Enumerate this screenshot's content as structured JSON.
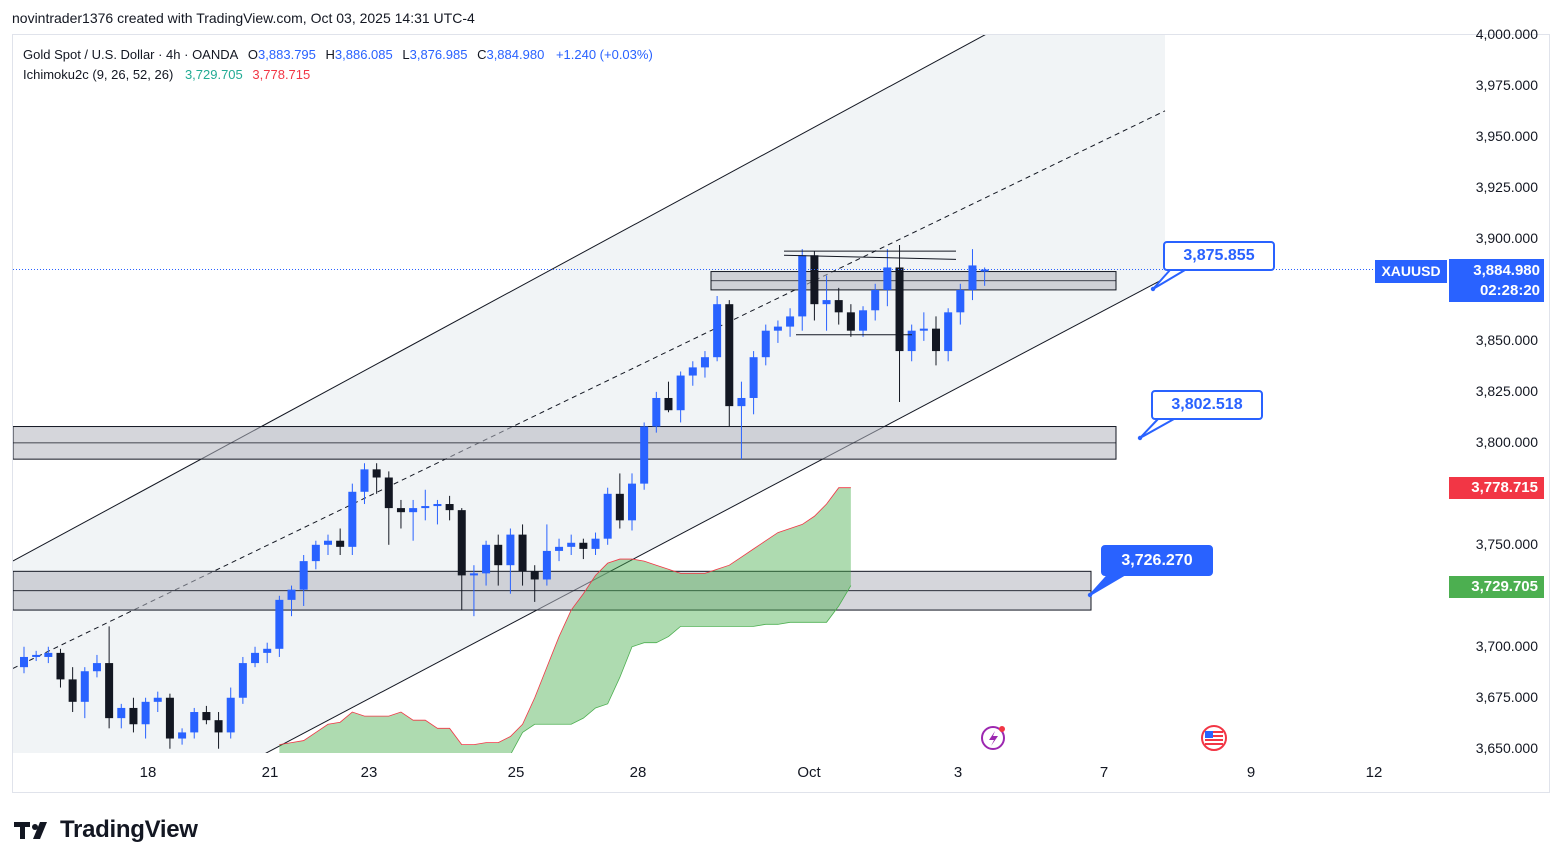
{
  "attribution": "novintrader1376 created with TradingView.com, Oct 03, 2025 14:31 UTC-4",
  "legend": {
    "symbol_line": "Gold Spot / U.S. Dollar · 4h · OANDA",
    "o_label": "O",
    "o_value": "3,883.795",
    "h_label": "H",
    "h_value": "3,886.085",
    "l_label": "L",
    "l_value": "3,876.985",
    "c_label": "C",
    "c_value": "3,884.980",
    "change": "+1.240 (+0.03%)",
    "ichimoku_label": "Ichimoku2c (9, 26, 52, 26)",
    "ichimoku_v1": "3,729.705",
    "ichimoku_v2": "3,778.715"
  },
  "price_axis": {
    "ticks": [
      "4,000.000",
      "3,975.000",
      "3,950.000",
      "3,925.000",
      "3,900.000",
      "3,850.000",
      "3,825.000",
      "3,800.000",
      "3,750.000",
      "3,700.000",
      "3,675.000",
      "3,650.000"
    ]
  },
  "tags": {
    "symbol": "XAUUSD",
    "last_price": "3,884.980",
    "countdown": "02:28:20",
    "ichimoku_red": "3,778.715",
    "ichimoku_green": "3,729.705"
  },
  "callouts": {
    "upper": "3,875.855",
    "middle": "3,802.518",
    "lower": "3,726.270"
  },
  "time_axis": [
    "18",
    "21",
    "23",
    "25",
    "28",
    "Oct",
    "3",
    "7",
    "9",
    "12"
  ],
  "colors": {
    "up": "#2962ff",
    "down": "#131722",
    "cloud": "#a5d6a7",
    "last_price": "#2962ff",
    "ichimoku_red": "#f23645",
    "ichimoku_green": "#4caf50"
  },
  "brand": "TradingView",
  "chart_data": {
    "type": "candlestick",
    "timeframe": "4h",
    "ylim": [
      3645,
      4000
    ],
    "x_ticks": [
      "18",
      "21",
      "23",
      "25",
      "28",
      "Oct",
      "3",
      "7",
      "9",
      "12"
    ],
    "candles": [
      [
        3690,
        3700,
        3687,
        3695
      ],
      [
        3695,
        3698,
        3693,
        3696
      ],
      [
        3695,
        3700,
        3692,
        3697
      ],
      [
        3697,
        3699,
        3680,
        3684
      ],
      [
        3684,
        3690,
        3668,
        3673
      ],
      [
        3673,
        3690,
        3665,
        3688
      ],
      [
        3688,
        3696,
        3685,
        3692
      ],
      [
        3692,
        3710,
        3660,
        3665
      ],
      [
        3665,
        3672,
        3660,
        3670
      ],
      [
        3670,
        3675,
        3658,
        3662
      ],
      [
        3662,
        3675,
        3655,
        3673
      ],
      [
        3673,
        3678,
        3668,
        3675
      ],
      [
        3675,
        3677,
        3650,
        3655
      ],
      [
        3655,
        3660,
        3652,
        3658
      ],
      [
        3658,
        3670,
        3655,
        3668
      ],
      [
        3668,
        3671,
        3662,
        3664
      ],
      [
        3664,
        3668,
        3650,
        3658
      ],
      [
        3658,
        3680,
        3655,
        3675
      ],
      [
        3675,
        3695,
        3672,
        3692
      ],
      [
        3692,
        3700,
        3690,
        3697
      ],
      [
        3697,
        3702,
        3692,
        3699
      ],
      [
        3699,
        3725,
        3695,
        3723
      ],
      [
        3723,
        3730,
        3715,
        3728
      ],
      [
        3728,
        3745,
        3720,
        3742
      ],
      [
        3742,
        3752,
        3738,
        3750
      ],
      [
        3750,
        3755,
        3745,
        3752
      ],
      [
        3752,
        3758,
        3745,
        3749
      ],
      [
        3749,
        3780,
        3745,
        3776
      ],
      [
        3776,
        3790,
        3770,
        3787
      ],
      [
        3787,
        3790,
        3775,
        3783
      ],
      [
        3783,
        3786,
        3750,
        3768
      ],
      [
        3768,
        3772,
        3758,
        3766
      ],
      [
        3766,
        3772,
        3752,
        3768
      ],
      [
        3768,
        3777,
        3762,
        3769
      ],
      [
        3769,
        3772,
        3760,
        3770
      ],
      [
        3770,
        3774,
        3762,
        3767
      ],
      [
        3767,
        3768,
        3718,
        3735
      ],
      [
        3735,
        3740,
        3715,
        3736
      ],
      [
        3736,
        3752,
        3730,
        3750
      ],
      [
        3750,
        3755,
        3730,
        3740
      ],
      [
        3740,
        3758,
        3726,
        3755
      ],
      [
        3755,
        3760,
        3730,
        3737
      ],
      [
        3737,
        3740,
        3722,
        3733
      ],
      [
        3733,
        3760,
        3730,
        3747
      ],
      [
        3747,
        3753,
        3742,
        3749
      ],
      [
        3749,
        3755,
        3745,
        3751
      ],
      [
        3751,
        3753,
        3743,
        3748
      ],
      [
        3748,
        3756,
        3745,
        3753
      ],
      [
        3753,
        3778,
        3750,
        3775
      ],
      [
        3775,
        3785,
        3758,
        3762
      ],
      [
        3762,
        3785,
        3757,
        3780
      ],
      [
        3780,
        3810,
        3777,
        3808
      ],
      [
        3808,
        3825,
        3805,
        3822
      ],
      [
        3822,
        3830,
        3815,
        3816
      ],
      [
        3816,
        3835,
        3810,
        3833
      ],
      [
        3833,
        3840,
        3828,
        3837
      ],
      [
        3837,
        3845,
        3832,
        3842
      ],
      [
        3842,
        3872,
        3840,
        3868
      ],
      [
        3868,
        3870,
        3808,
        3818
      ],
      [
        3818,
        3830,
        3792,
        3822
      ],
      [
        3822,
        3845,
        3814,
        3842
      ],
      [
        3842,
        3858,
        3838,
        3855
      ],
      [
        3855,
        3860,
        3849,
        3857
      ],
      [
        3857,
        3866,
        3852,
        3862
      ],
      [
        3862,
        3895,
        3855,
        3892
      ],
      [
        3892,
        3894,
        3860,
        3868
      ],
      [
        3868,
        3882,
        3855,
        3870
      ],
      [
        3870,
        3876,
        3858,
        3864
      ],
      [
        3864,
        3868,
        3852,
        3855
      ],
      [
        3855,
        3867,
        3852,
        3865
      ],
      [
        3865,
        3878,
        3860,
        3875
      ],
      [
        3875,
        3895,
        3867,
        3886
      ],
      [
        3886,
        3897,
        3820,
        3845
      ],
      [
        3845,
        3858,
        3840,
        3855
      ],
      [
        3855,
        3864,
        3850,
        3856
      ],
      [
        3856,
        3862,
        3838,
        3845
      ],
      [
        3845,
        3866,
        3840,
        3864
      ],
      [
        3864,
        3878,
        3858,
        3875
      ],
      [
        3875,
        3895,
        3870,
        3887
      ],
      [
        3884,
        3886,
        3877,
        3885
      ]
    ],
    "ichimoku": {
      "label": "Ichimoku2c (9, 26, 52, 26)",
      "span_a_last": 3778.715,
      "span_b_last": 3729.705,
      "span_a": [
        3652,
        3653,
        3654,
        3658,
        3662,
        3663,
        3668,
        3666,
        3666,
        3666,
        3668,
        3664,
        3664,
        3660,
        3660,
        3652,
        3652,
        3653,
        3653,
        3656,
        3662,
        3675,
        3690,
        3705,
        3718,
        3726,
        3735,
        3741,
        3743,
        3743,
        3742,
        3740,
        3738,
        3736,
        3736,
        3736,
        3738,
        3740,
        3744,
        3748,
        3752,
        3756,
        3758,
        3760,
        3764,
        3770,
        3778,
        3778
      ],
      "span_b": [
        3645,
        3646,
        3646,
        3646,
        3647,
        3647,
        3647,
        3647,
        3647,
        3647,
        3647,
        3647,
        3647,
        3647,
        3647,
        3647,
        3647,
        3647,
        3647,
        3647,
        3658,
        3662,
        3662,
        3662,
        3662,
        3665,
        3670,
        3672,
        3685,
        3700,
        3702,
        3702,
        3705,
        3710,
        3710,
        3710,
        3710,
        3710,
        3710,
        3710,
        3711,
        3711,
        3712,
        3712,
        3712,
        3712,
        3720,
        3730
      ]
    },
    "channel": {
      "upper": [
        [
          0,
          3745
        ],
        [
          79,
          4000
        ]
      ],
      "mid": [
        [
          0,
          3692
        ],
        [
          79,
          3920
        ]
      ],
      "lower": [
        [
          19,
          3645
        ],
        [
          79,
          3834
        ]
      ]
    },
    "zones": [
      {
        "top": 3884,
        "bottom": 3875
      },
      {
        "top": 3808,
        "bottom": 3792
      },
      {
        "top": 3737,
        "bottom": 3718
      }
    ],
    "levels": [
      3875.855,
      3802.518,
      3726.27
    ]
  }
}
